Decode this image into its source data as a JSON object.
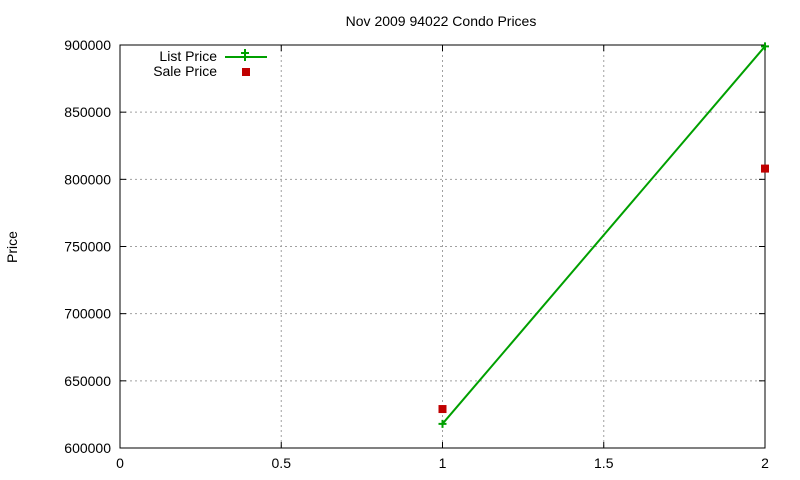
{
  "chart_data": {
    "type": "line",
    "title": "Nov 2009 94022 Condo Prices",
    "xlabel": "",
    "ylabel": "Price",
    "xlim": [
      0,
      2
    ],
    "ylim": [
      600000,
      900000
    ],
    "xticks": [
      "0",
      "0.5",
      "1",
      "1.5",
      "2"
    ],
    "yticks": [
      "600000",
      "650000",
      "700000",
      "750000",
      "800000",
      "850000",
      "900000"
    ],
    "grid": true,
    "legend_position": "top-left",
    "series": [
      {
        "name": "List Price",
        "style": "line-with-plus-markers",
        "color": "#00a000",
        "x": [
          1,
          2
        ],
        "y": [
          618000,
          899000
        ]
      },
      {
        "name": "Sale Price",
        "style": "square-markers",
        "color": "#c00000",
        "x": [
          1,
          2
        ],
        "y": [
          629000,
          808000
        ]
      }
    ]
  }
}
